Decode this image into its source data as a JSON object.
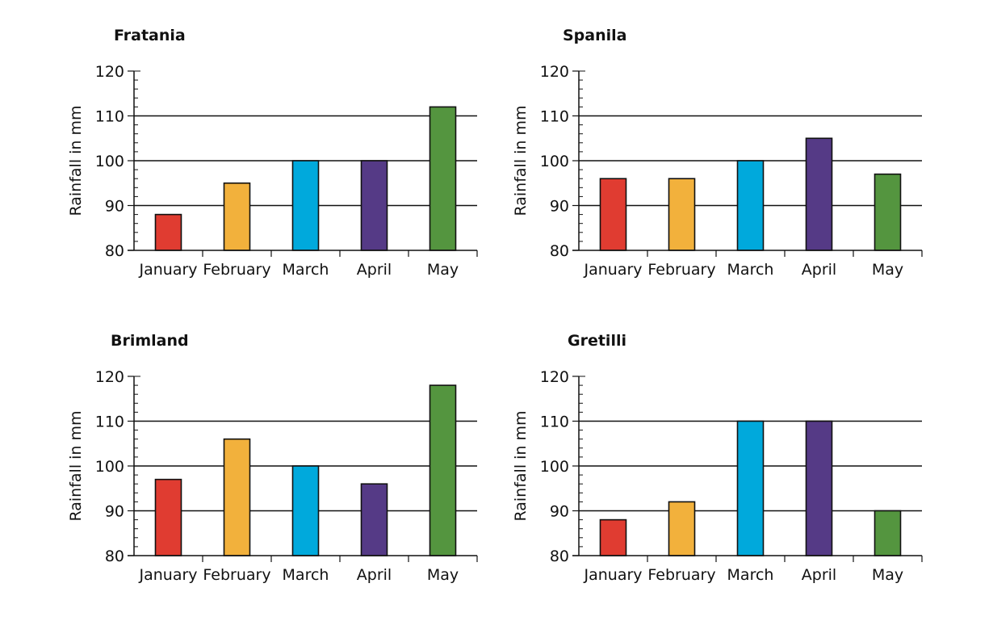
{
  "chart_data": [
    {
      "type": "bar",
      "title": "Fratania",
      "ylabel": "Rainfall in mm",
      "xlabel": "",
      "categories": [
        "January",
        "February",
        "March",
        "April",
        "May"
      ],
      "values": [
        88,
        95,
        100,
        100,
        112
      ],
      "ylim": [
        80,
        120
      ],
      "yticks": [
        80,
        90,
        100,
        110,
        120
      ],
      "gridlines": [
        90,
        100,
        110
      ]
    },
    {
      "type": "bar",
      "title": "Spanila",
      "ylabel": "Rainfall in mm",
      "xlabel": "",
      "categories": [
        "January",
        "February",
        "March",
        "April",
        "May"
      ],
      "values": [
        96,
        96,
        100,
        105,
        97
      ],
      "ylim": [
        80,
        120
      ],
      "yticks": [
        80,
        90,
        100,
        110,
        120
      ],
      "gridlines": [
        90,
        100,
        110
      ]
    },
    {
      "type": "bar",
      "title": "Brimland",
      "ylabel": "Rainfall in mm",
      "xlabel": "",
      "categories": [
        "January",
        "February",
        "March",
        "April",
        "May"
      ],
      "values": [
        97,
        106,
        100,
        96,
        118
      ],
      "ylim": [
        80,
        120
      ],
      "yticks": [
        80,
        90,
        100,
        110,
        120
      ],
      "gridlines": [
        90,
        100,
        110
      ]
    },
    {
      "type": "bar",
      "title": "Gretilli",
      "ylabel": "Rainfall in mm",
      "xlabel": "",
      "categories": [
        "January",
        "February",
        "March",
        "April",
        "May"
      ],
      "values": [
        88,
        92,
        110,
        110,
        90
      ],
      "ylim": [
        80,
        120
      ],
      "yticks": [
        80,
        90,
        100,
        110,
        120
      ],
      "gridlines": [
        90,
        100,
        110
      ]
    }
  ],
  "bar_colors": [
    "#e03c31",
    "#f2b13c",
    "#00a9dc",
    "#553a86",
    "#54953f"
  ]
}
